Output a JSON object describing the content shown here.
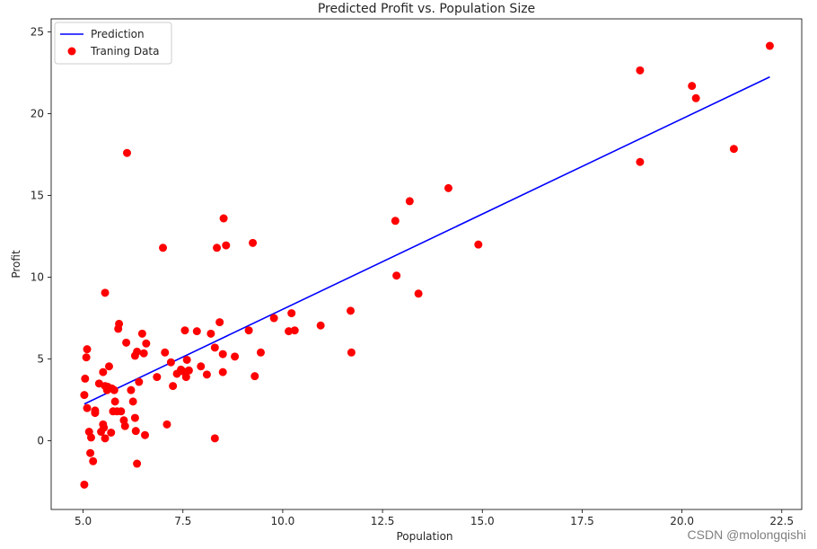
{
  "chart_data": {
    "type": "scatter",
    "title": "Predicted Profit vs. Population Size",
    "xlabel": "Population",
    "ylabel": "Profit",
    "xlim": [
      4.2,
      23.0
    ],
    "ylim": [
      -4.2,
      25.8
    ],
    "xticks": [
      5.0,
      7.5,
      10.0,
      12.5,
      15.0,
      17.5,
      20.0,
      22.5
    ],
    "xtick_labels": [
      "5.0",
      "7.5",
      "10.0",
      "12.5",
      "15.0",
      "17.5",
      "20.0",
      "22.5"
    ],
    "yticks": [
      0,
      5,
      10,
      15,
      20,
      25
    ],
    "ytick_labels": [
      "0",
      "5",
      "10",
      "15",
      "20",
      "25"
    ],
    "legend_position": "top-left",
    "series": [
      {
        "name": "Prediction",
        "kind": "line",
        "color": "#0000ff",
        "x": [
          5.03,
          22.2
        ],
        "y": [
          2.25,
          22.25
        ]
      },
      {
        "name": "Traning Data",
        "kind": "scatter",
        "color": "#ff0000",
        "x": [
          5.03,
          5.05,
          5.08,
          5.1,
          5.1,
          5.15,
          5.18,
          5.2,
          5.25,
          5.03,
          5.3,
          5.3,
          5.4,
          5.45,
          5.5,
          5.5,
          5.52,
          5.55,
          5.6,
          5.62,
          5.65,
          5.7,
          5.72,
          5.75,
          5.78,
          5.8,
          5.85,
          5.88,
          5.9,
          5.55,
          5.95,
          6.02,
          6.05,
          6.1,
          6.2,
          6.25,
          6.3,
          6.3,
          6.32,
          6.35,
          6.35,
          6.4,
          6.48,
          6.52,
          6.55,
          6.58,
          6.85,
          7.0,
          7.05,
          7.1,
          7.2,
          7.25,
          7.35,
          7.45,
          7.5,
          7.55,
          7.58,
          7.6,
          7.65,
          7.85,
          7.95,
          8.1,
          8.2,
          8.3,
          8.3,
          8.35,
          8.42,
          8.5,
          8.52,
          8.58,
          8.8,
          9.15,
          9.25,
          9.3,
          9.45,
          9.78,
          10.15,
          10.22,
          10.3,
          10.95,
          11.7,
          11.72,
          12.82,
          12.85,
          13.18,
          13.4,
          14.15,
          14.9,
          18.95,
          18.95,
          20.25,
          20.35,
          21.3,
          22.2,
          5.55,
          6.08,
          8.5
        ],
        "y": [
          2.8,
          3.8,
          5.1,
          2.0,
          5.6,
          0.55,
          -0.75,
          0.2,
          -1.25,
          -2.68,
          1.85,
          1.7,
          3.5,
          0.55,
          4.2,
          1.0,
          0.8,
          0.15,
          3.1,
          3.3,
          4.55,
          0.5,
          3.2,
          1.8,
          3.1,
          2.4,
          1.8,
          6.85,
          7.15,
          9.05,
          1.8,
          1.25,
          0.9,
          17.6,
          3.1,
          2.4,
          1.4,
          5.2,
          0.6,
          5.45,
          -1.4,
          3.6,
          6.55,
          5.35,
          0.35,
          5.95,
          3.9,
          11.8,
          5.4,
          1.0,
          4.8,
          3.35,
          4.1,
          4.35,
          4.25,
          6.75,
          3.9,
          4.95,
          4.3,
          6.7,
          4.55,
          4.05,
          6.55,
          5.7,
          0.15,
          11.8,
          7.25,
          4.2,
          13.6,
          11.95,
          5.15,
          6.75,
          12.1,
          3.95,
          5.4,
          7.5,
          6.7,
          7.8,
          6.75,
          7.05,
          7.95,
          5.4,
          13.45,
          10.1,
          14.65,
          9.0,
          15.45,
          12.0,
          22.65,
          17.05,
          21.7,
          20.95,
          17.85,
          24.15,
          3.35,
          6.0,
          5.3
        ]
      }
    ]
  },
  "watermark": "CSDN @molongqishi"
}
